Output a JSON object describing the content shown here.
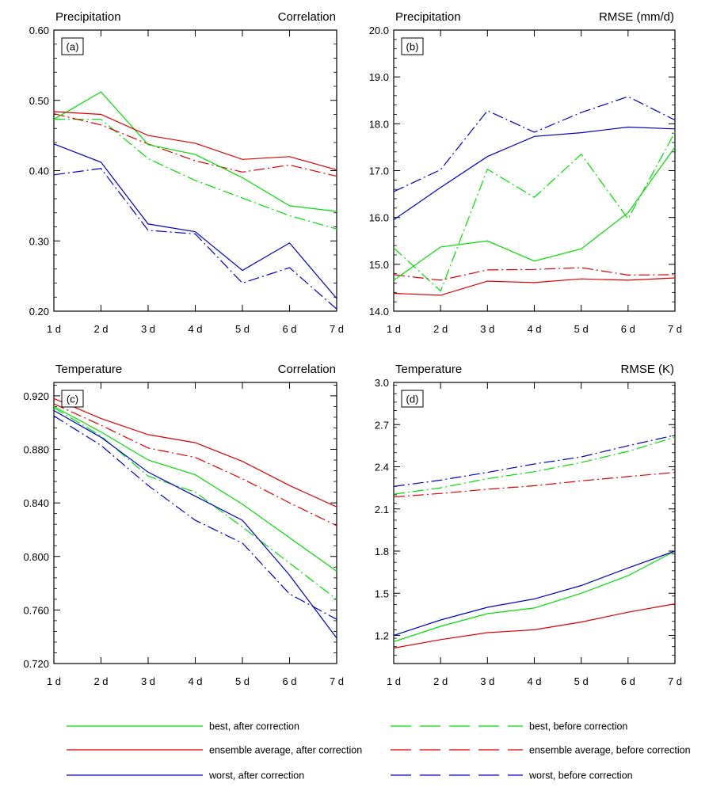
{
  "chart_data": [
    {
      "panel_label": "(a)",
      "type": "line",
      "title_left": "Precipitation",
      "title_right": "Correlation",
      "x": [
        "1 d",
        "2 d",
        "3 d",
        "4 d",
        "5 d",
        "6 d",
        "7 d"
      ],
      "ylim": [
        0.2,
        0.6
      ],
      "yticks": [
        0.2,
        0.3,
        0.4,
        0.5,
        0.6
      ],
      "ytick_labels": [
        "0.20",
        "0.30",
        "0.40",
        "0.50",
        "0.60"
      ],
      "series": [
        {
          "name": "best, after correction",
          "values": [
            0.473,
            0.512,
            0.437,
            0.423,
            0.39,
            0.35,
            0.342
          ]
        },
        {
          "name": "ensemble average, after correction",
          "values": [
            0.484,
            0.48,
            0.45,
            0.439,
            0.416,
            0.42,
            0.401
          ]
        },
        {
          "name": "worst, after correction",
          "values": [
            0.438,
            0.412,
            0.324,
            0.313,
            0.258,
            0.297,
            0.218
          ]
        },
        {
          "name": "best, before correction",
          "values": [
            0.473,
            0.473,
            0.417,
            0.386,
            0.361,
            0.336,
            0.317
          ]
        },
        {
          "name": "ensemble average, before correction",
          "values": [
            0.481,
            0.465,
            0.438,
            0.414,
            0.398,
            0.408,
            0.392
          ]
        },
        {
          "name": "worst, before correction",
          "values": [
            0.394,
            0.403,
            0.315,
            0.31,
            0.24,
            0.262,
            0.203
          ]
        }
      ]
    },
    {
      "panel_label": "(b)",
      "type": "line",
      "title_left": "Precipitation",
      "title_right": "RMSE (mm/d)",
      "x": [
        "1 d",
        "2 d",
        "3 d",
        "4 d",
        "5 d",
        "6 d",
        "7 d"
      ],
      "ylim": [
        14.0,
        20.0
      ],
      "yticks": [
        14,
        15,
        16,
        17,
        18,
        19,
        20
      ],
      "ytick_labels": [
        "14.0",
        "15.0",
        "16.0",
        "17.0",
        "18.0",
        "19.0",
        "20.0"
      ],
      "series": [
        {
          "name": "best, after correction",
          "values": [
            14.66,
            15.37,
            15.5,
            15.07,
            15.33,
            16.1,
            17.5
          ]
        },
        {
          "name": "ensemble average, after correction",
          "values": [
            14.38,
            14.34,
            14.64,
            14.61,
            14.69,
            14.66,
            14.71
          ]
        },
        {
          "name": "worst, after correction",
          "values": [
            15.95,
            16.64,
            17.3,
            17.73,
            17.81,
            17.93,
            17.89
          ]
        },
        {
          "name": "best, before correction",
          "values": [
            15.35,
            14.43,
            17.03,
            16.43,
            17.35,
            15.97,
            17.82
          ]
        },
        {
          "name": "ensemble average, before correction",
          "values": [
            14.78,
            14.66,
            14.88,
            14.89,
            14.93,
            14.77,
            14.78
          ]
        },
        {
          "name": "worst, before correction",
          "values": [
            16.55,
            17.02,
            18.28,
            17.82,
            18.24,
            18.58,
            18.08
          ]
        }
      ]
    },
    {
      "panel_label": "(c)",
      "type": "line",
      "title_left": "Temperature",
      "title_right": "Correlation",
      "x": [
        "1 d",
        "2 d",
        "3 d",
        "4 d",
        "5 d",
        "6 d",
        "7 d"
      ],
      "ylim": [
        0.72,
        0.93
      ],
      "yticks": [
        0.72,
        0.76,
        0.8,
        0.84,
        0.88,
        0.92
      ],
      "ytick_labels": [
        "0.720",
        "0.760",
        "0.800",
        "0.840",
        "0.880",
        "0.920"
      ],
      "series": [
        {
          "name": "best, after correction",
          "values": [
            0.912,
            0.893,
            0.872,
            0.861,
            0.839,
            0.814,
            0.789
          ]
        },
        {
          "name": "ensemble average, after correction",
          "values": [
            0.918,
            0.903,
            0.891,
            0.885,
            0.871,
            0.853,
            0.837
          ]
        },
        {
          "name": "worst, after correction",
          "values": [
            0.909,
            0.889,
            0.863,
            0.845,
            0.827,
            0.786,
            0.739
          ]
        },
        {
          "name": "best, before correction",
          "values": [
            0.911,
            0.89,
            0.86,
            0.848,
            0.822,
            0.795,
            0.768
          ]
        },
        {
          "name": "ensemble average, before correction",
          "values": [
            0.914,
            0.898,
            0.881,
            0.874,
            0.858,
            0.84,
            0.823
          ]
        },
        {
          "name": "worst, before correction",
          "values": [
            0.905,
            0.883,
            0.853,
            0.827,
            0.81,
            0.772,
            0.753
          ]
        }
      ]
    },
    {
      "panel_label": "(d)",
      "type": "line",
      "title_left": "Temperature",
      "title_right": "RMSE (K)",
      "x": [
        "1 d",
        "2 d",
        "3 d",
        "4 d",
        "5 d",
        "6 d",
        "7 d"
      ],
      "ylim": [
        1.0,
        3.0
      ],
      "yticks": [
        1.2,
        1.5,
        1.8,
        2.1,
        2.4,
        2.7,
        3.0
      ],
      "ytick_labels": [
        "1.2",
        "1.5",
        "1.8",
        "2.1",
        "2.4",
        "2.7",
        "3.0"
      ],
      "series": [
        {
          "name": "best, after correction",
          "values": [
            1.155,
            1.265,
            1.355,
            1.395,
            1.5,
            1.625,
            1.8
          ]
        },
        {
          "name": "ensemble average, after correction",
          "values": [
            1.11,
            1.17,
            1.22,
            1.24,
            1.295,
            1.365,
            1.425
          ]
        },
        {
          "name": "worst, after correction",
          "values": [
            1.2,
            1.31,
            1.4,
            1.46,
            1.555,
            1.68,
            1.8
          ]
        },
        {
          "name": "best, before correction",
          "values": [
            2.205,
            2.25,
            2.315,
            2.365,
            2.43,
            2.51,
            2.61
          ]
        },
        {
          "name": "ensemble average, before correction",
          "values": [
            2.185,
            2.21,
            2.24,
            2.265,
            2.3,
            2.33,
            2.36
          ]
        },
        {
          "name": "worst, before correction",
          "values": [
            2.26,
            2.305,
            2.36,
            2.42,
            2.47,
            2.55,
            2.625
          ]
        }
      ]
    }
  ],
  "legend": [
    {
      "label": "best, after correction",
      "color": "#00dd00",
      "dash": "solid",
      "column": "left"
    },
    {
      "label": "ensemble average, after correction",
      "color": "#dd0000",
      "dash": "solid",
      "column": "left"
    },
    {
      "label": "worst, after correction",
      "color": "#0000cc",
      "dash": "solid",
      "column": "left"
    },
    {
      "label": "best, before correction",
      "color": "#00dd00",
      "dash": "dashed",
      "column": "right"
    },
    {
      "label": "ensemble average, before correction",
      "color": "#dd0000",
      "dash": "dashed",
      "column": "right"
    },
    {
      "label": "worst, before correction",
      "color": "#0000cc",
      "dash": "dashed",
      "column": "right"
    }
  ]
}
